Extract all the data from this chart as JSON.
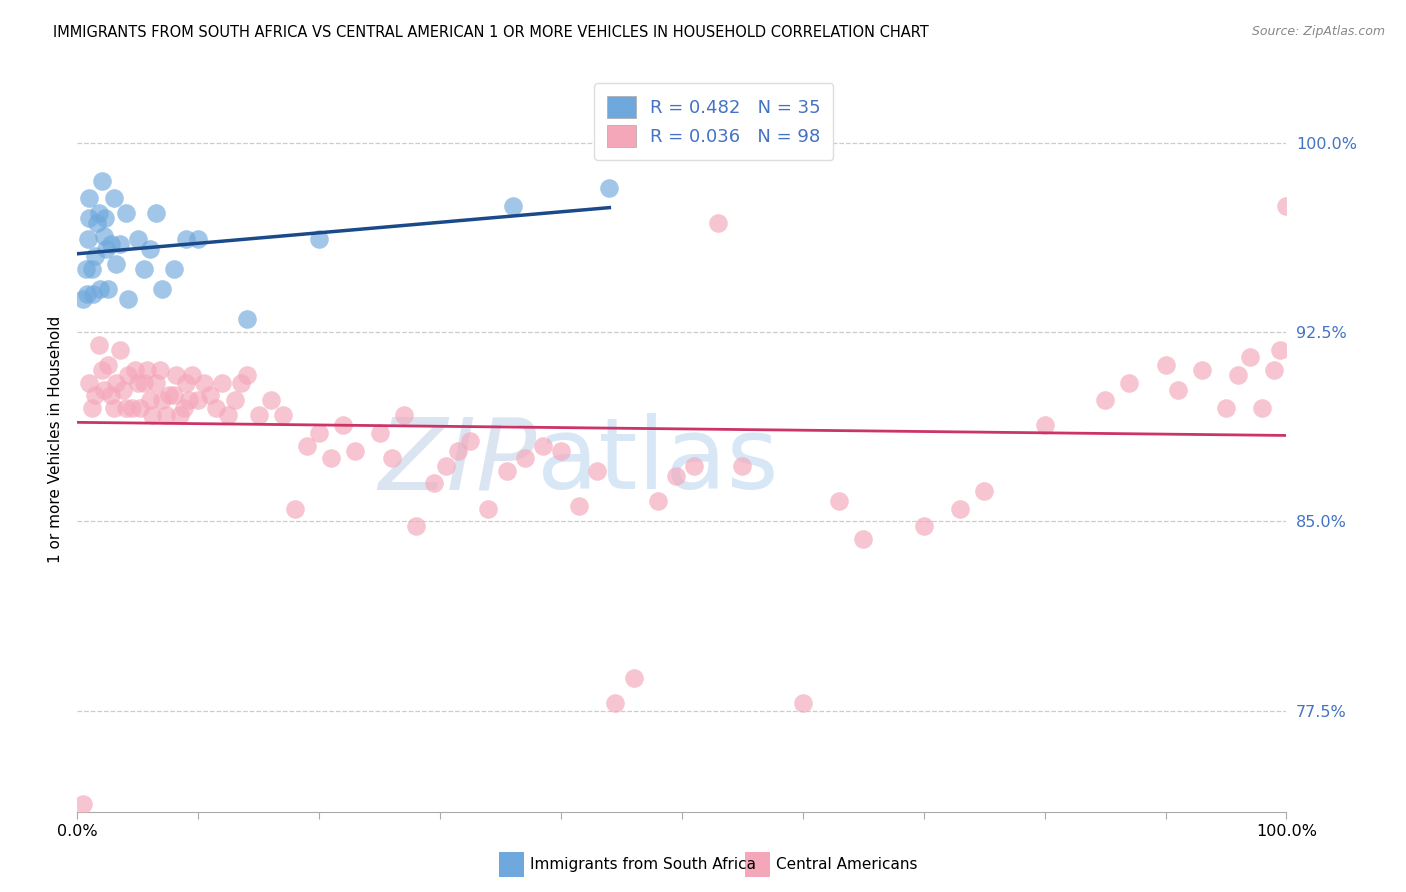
{
  "title": "IMMIGRANTS FROM SOUTH AFRICA VS CENTRAL AMERICAN 1 OR MORE VEHICLES IN HOUSEHOLD CORRELATION CHART",
  "source": "Source: ZipAtlas.com",
  "ylabel": "1 or more Vehicles in Household",
  "xlim": [
    0.0,
    1.0
  ],
  "ylim": [
    0.735,
    1.03
  ],
  "yticks": [
    0.775,
    0.85,
    0.925,
    1.0
  ],
  "ytick_labels": [
    "77.5%",
    "85.0%",
    "92.5%",
    "100.0%"
  ],
  "xticks": [
    0.0,
    0.1,
    0.2,
    0.3,
    0.4,
    0.5,
    0.6,
    0.7,
    0.8,
    0.9,
    1.0
  ],
  "xtick_labels_show": [
    "0.0%",
    "",
    "",
    "",
    "",
    "",
    "",
    "",
    "",
    "",
    "100.0%"
  ],
  "legend_label_blue": "Immigrants from South Africa",
  "legend_label_pink": "Central Americans",
  "blue_color": "#6fa8dc",
  "pink_color": "#f4a7b9",
  "blue_line_color": "#1a4a8a",
  "pink_line_color": "#cc3366",
  "watermark": "ZIPatlas",
  "blue_x": [
    0.005,
    0.007,
    0.008,
    0.009,
    0.01,
    0.01,
    0.012,
    0.013,
    0.015,
    0.016,
    0.018,
    0.019,
    0.02,
    0.022,
    0.023,
    0.024,
    0.025,
    0.028,
    0.03,
    0.032,
    0.035,
    0.04,
    0.042,
    0.05,
    0.055,
    0.06,
    0.065,
    0.07,
    0.08,
    0.09,
    0.1,
    0.14,
    0.2,
    0.36,
    0.44
  ],
  "blue_y": [
    0.938,
    0.95,
    0.94,
    0.962,
    0.97,
    0.978,
    0.95,
    0.94,
    0.955,
    0.968,
    0.972,
    0.942,
    0.985,
    0.963,
    0.97,
    0.958,
    0.942,
    0.96,
    0.978,
    0.952,
    0.96,
    0.972,
    0.938,
    0.962,
    0.95,
    0.958,
    0.972,
    0.942,
    0.95,
    0.962,
    0.962,
    0.93,
    0.962,
    0.975,
    0.982
  ],
  "pink_x": [
    0.005,
    0.01,
    0.012,
    0.015,
    0.018,
    0.02,
    0.022,
    0.025,
    0.028,
    0.03,
    0.032,
    0.035,
    0.038,
    0.04,
    0.042,
    0.045,
    0.048,
    0.05,
    0.052,
    0.055,
    0.058,
    0.06,
    0.062,
    0.065,
    0.068,
    0.07,
    0.073,
    0.076,
    0.08,
    0.082,
    0.085,
    0.088,
    0.09,
    0.092,
    0.095,
    0.1,
    0.105,
    0.11,
    0.115,
    0.12,
    0.125,
    0.13,
    0.135,
    0.14,
    0.15,
    0.16,
    0.17,
    0.18,
    0.19,
    0.2,
    0.21,
    0.22,
    0.23,
    0.25,
    0.26,
    0.27,
    0.28,
    0.295,
    0.305,
    0.315,
    0.325,
    0.34,
    0.355,
    0.37,
    0.385,
    0.4,
    0.415,
    0.43,
    0.445,
    0.46,
    0.48,
    0.495,
    0.51,
    0.53,
    0.55,
    0.6,
    0.63,
    0.65,
    0.7,
    0.73,
    0.75,
    0.8,
    0.85,
    0.87,
    0.9,
    0.91,
    0.93,
    0.95,
    0.96,
    0.97,
    0.98,
    0.99,
    0.995,
    1.0
  ],
  "pink_y": [
    0.738,
    0.905,
    0.895,
    0.9,
    0.92,
    0.91,
    0.902,
    0.912,
    0.9,
    0.895,
    0.905,
    0.918,
    0.902,
    0.895,
    0.908,
    0.895,
    0.91,
    0.905,
    0.895,
    0.905,
    0.91,
    0.898,
    0.892,
    0.905,
    0.91,
    0.898,
    0.892,
    0.9,
    0.9,
    0.908,
    0.892,
    0.895,
    0.905,
    0.898,
    0.908,
    0.898,
    0.905,
    0.9,
    0.895,
    0.905,
    0.892,
    0.898,
    0.905,
    0.908,
    0.892,
    0.898,
    0.892,
    0.855,
    0.88,
    0.885,
    0.875,
    0.888,
    0.878,
    0.885,
    0.875,
    0.892,
    0.848,
    0.865,
    0.872,
    0.878,
    0.882,
    0.855,
    0.87,
    0.875,
    0.88,
    0.878,
    0.856,
    0.87,
    0.778,
    0.788,
    0.858,
    0.868,
    0.872,
    0.968,
    0.872,
    0.778,
    0.858,
    0.843,
    0.848,
    0.855,
    0.862,
    0.888,
    0.898,
    0.905,
    0.912,
    0.902,
    0.91,
    0.895,
    0.908,
    0.915,
    0.895,
    0.91,
    0.918,
    0.975
  ]
}
